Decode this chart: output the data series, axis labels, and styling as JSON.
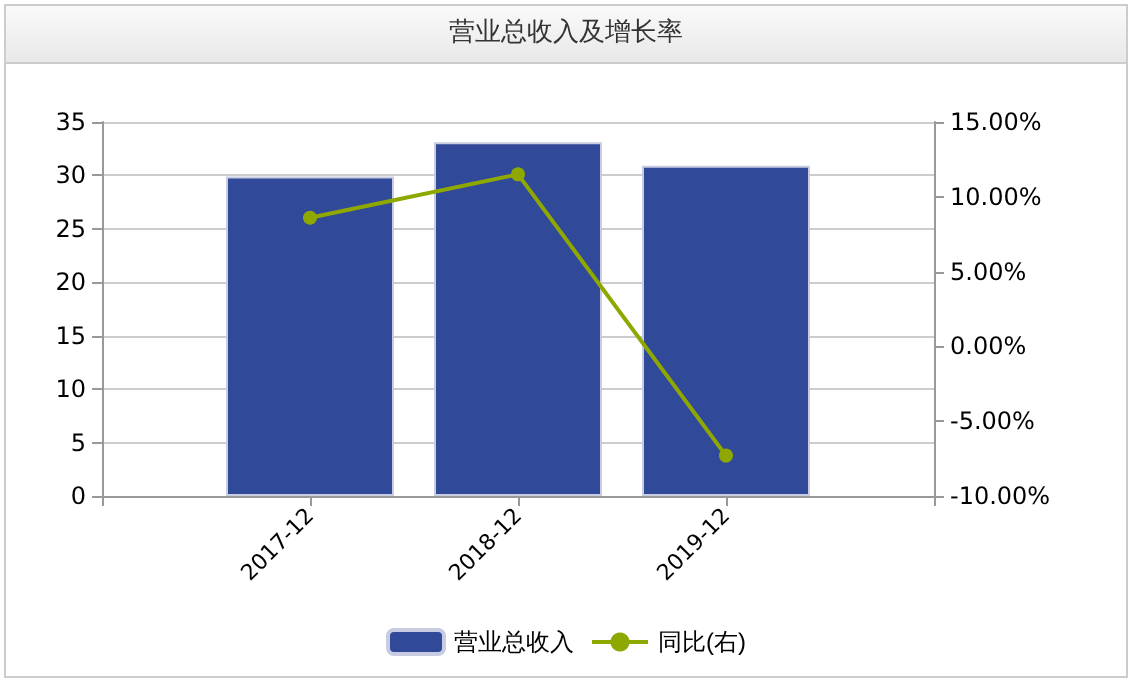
{
  "chart_data": {
    "type": "bar",
    "title": "营业总收入及增长率",
    "categories": [
      null,
      "2017-12",
      "2018-12",
      "2019-12",
      null
    ],
    "series": [
      {
        "name": "营业总收入",
        "color": "#314999",
        "values": [
          null,
          29.9,
          33.1,
          30.9,
          null
        ]
      },
      {
        "name": "同比(右)",
        "type": "line",
        "axis": "y2",
        "color": "#8fa800",
        "marker": "circle",
        "values": [
          null,
          8.6,
          11.5,
          -7.3,
          null
        ]
      }
    ],
    "ylim": [
      0,
      35
    ],
    "yticks": [
      0,
      5,
      10,
      15,
      20,
      25,
      30,
      35
    ],
    "y2lim": [
      -10,
      15
    ],
    "y2ticks": [
      {
        "value": -10,
        "label": "-10.00%"
      },
      {
        "value": -5,
        "label": "-5.00%"
      },
      {
        "value": 0,
        "label": "0.00%"
      },
      {
        "value": 5,
        "label": "5.00%"
      },
      {
        "value": 10,
        "label": "10.00%"
      },
      {
        "value": 15,
        "label": "15.00%"
      }
    ],
    "grid": "y",
    "legend": "bottom"
  }
}
